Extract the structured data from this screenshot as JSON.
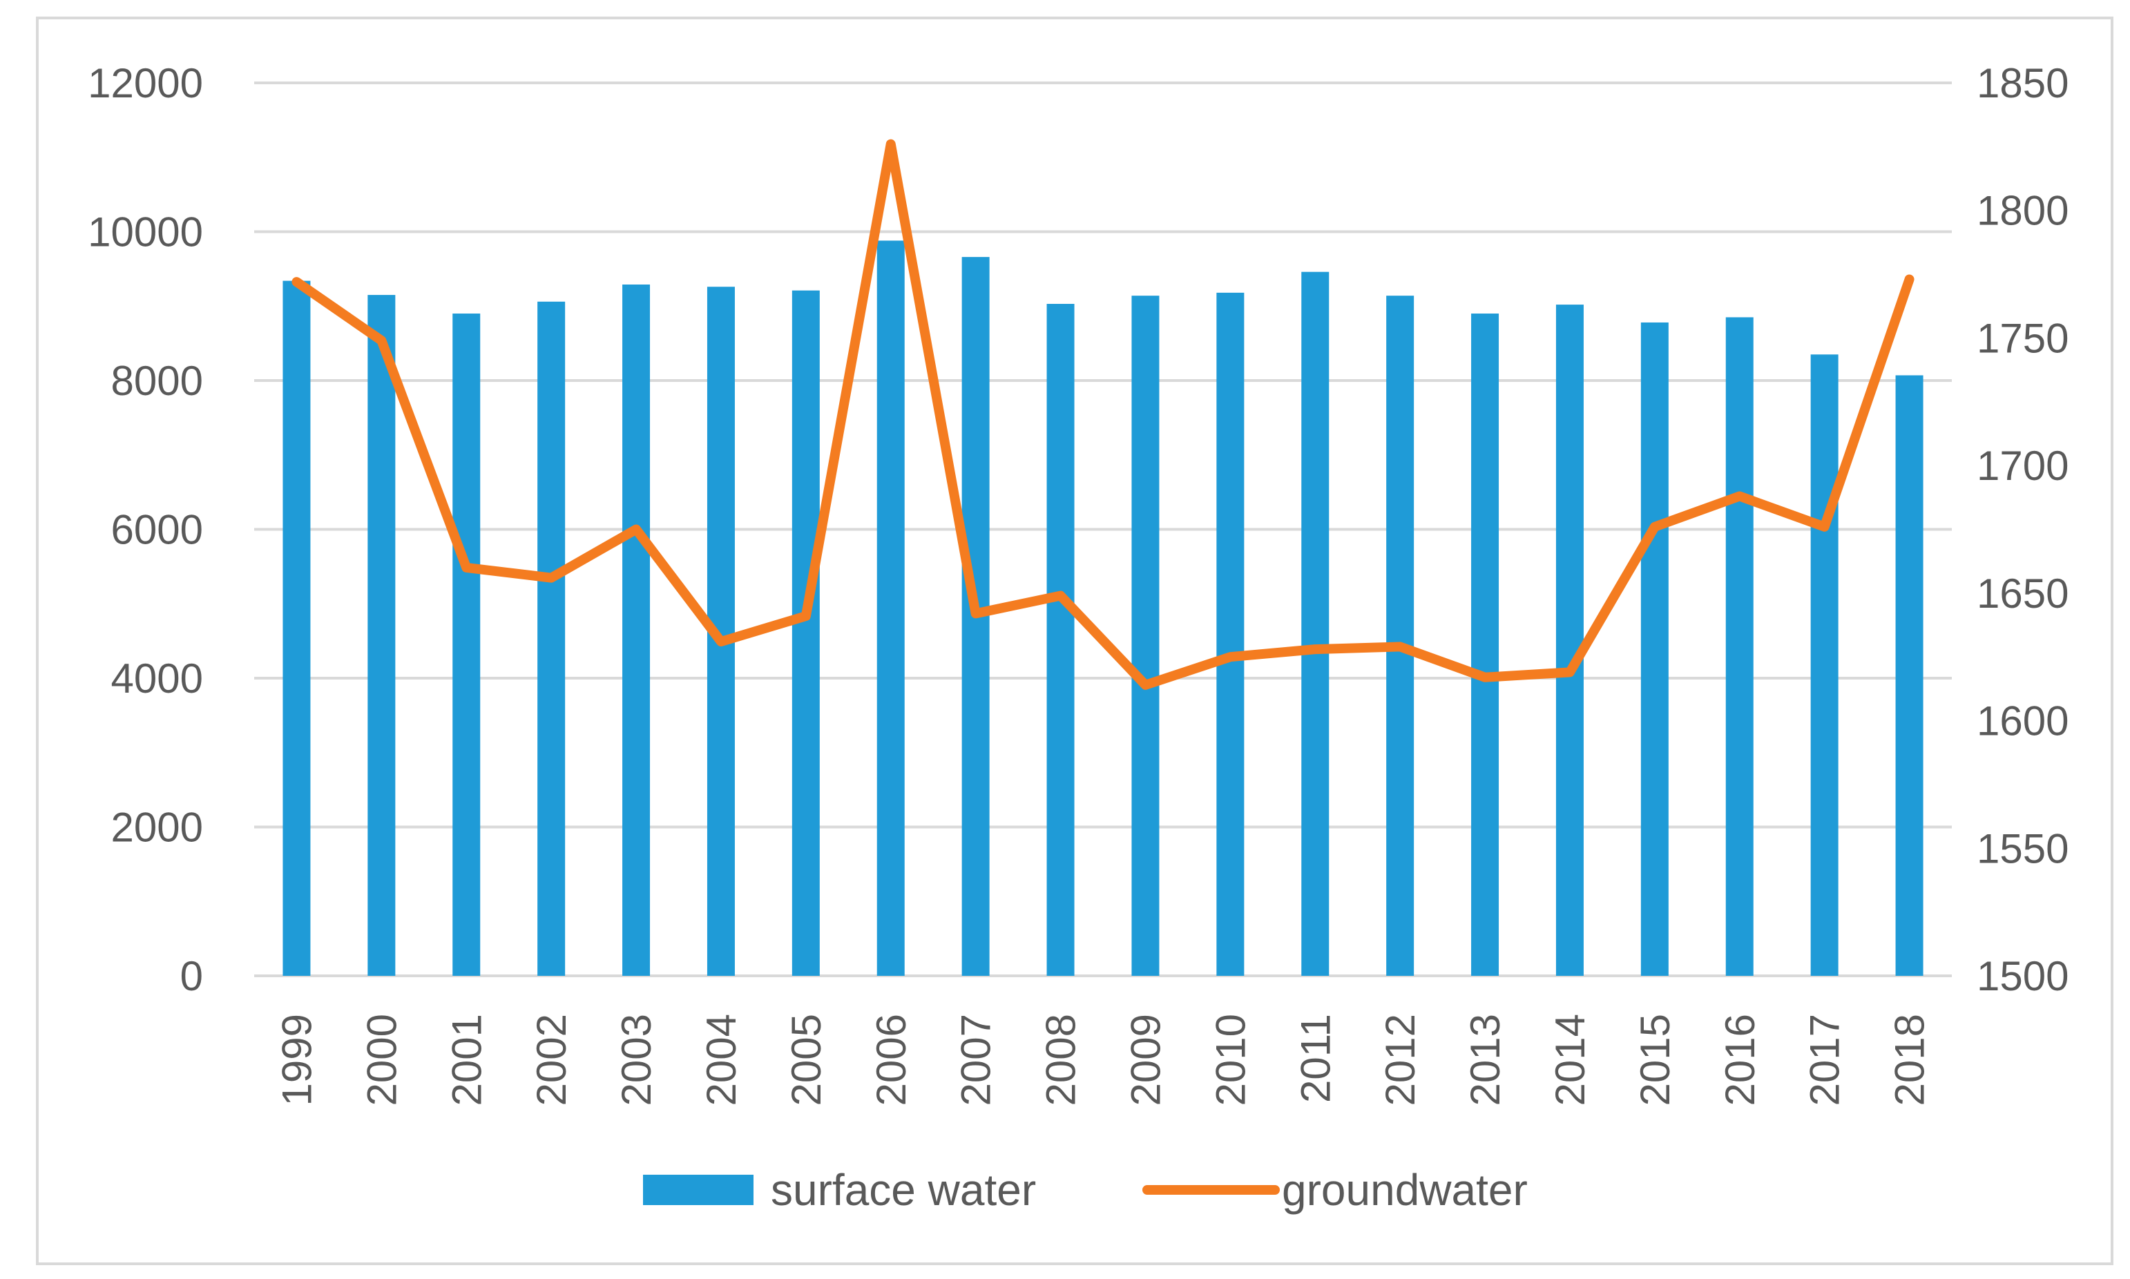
{
  "chart_data": {
    "type": "bar+line",
    "title": "",
    "categories": [
      "1999",
      "2000",
      "2001",
      "2002",
      "2003",
      "2004",
      "2005",
      "2006",
      "2007",
      "2008",
      "2009",
      "2010",
      "2011",
      "2012",
      "2013",
      "2014",
      "2015",
      "2016",
      "2017",
      "2018"
    ],
    "series": [
      {
        "name": "surface water",
        "type": "bar",
        "axis": "left",
        "color": "#1f9bd7",
        "values": [
          9340,
          9150,
          8900,
          9060,
          9290,
          9260,
          9210,
          9880,
          9660,
          9030,
          9140,
          9180,
          9460,
          9140,
          8900,
          9020,
          8780,
          8850,
          8350,
          8070
        ]
      },
      {
        "name": "groundwater",
        "type": "line",
        "axis": "right",
        "color": "#f47c20",
        "values": [
          1772,
          1749,
          1660,
          1656,
          1675,
          1631,
          1641,
          1826,
          1642,
          1649,
          1614,
          1625,
          1628,
          1629,
          1617,
          1619,
          1676,
          1688,
          1676,
          1773
        ]
      }
    ],
    "y_left": {
      "min": 0,
      "max": 12000,
      "ticks": [
        "0",
        "2000",
        "4000",
        "6000",
        "8000",
        "10000",
        "12000"
      ]
    },
    "y_right": {
      "min": 1500,
      "max": 1850,
      "ticks": [
        "1500",
        "1550",
        "1600",
        "1650",
        "1700",
        "1750",
        "1800",
        "1850"
      ]
    },
    "grid": true,
    "legend": {
      "position": "bottom",
      "items": [
        "surface water",
        "groundwater"
      ]
    },
    "tick_label_color": "#595959",
    "grid_color": "#d9d9d9"
  }
}
